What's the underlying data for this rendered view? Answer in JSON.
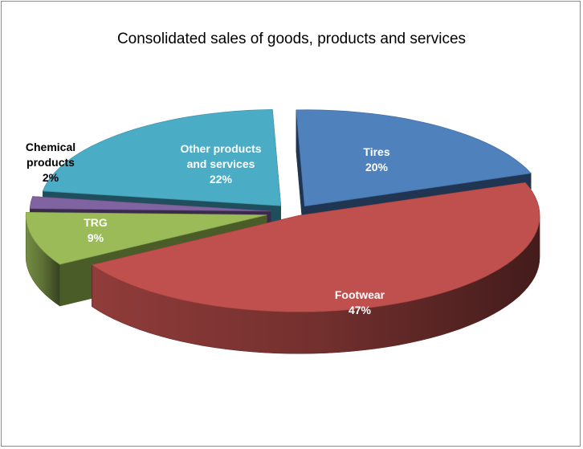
{
  "chart_data": {
    "type": "pie",
    "title": "Consolidated sales of goods, products and services",
    "slices": [
      {
        "label": "Tires",
        "percent_text": "20%",
        "value": 20,
        "color": "#4f81bd",
        "side_color": "#1f3552",
        "label_color": "#ffffff"
      },
      {
        "label": "Footwear",
        "percent_text": "47%",
        "value": 47,
        "color": "#c0504d",
        "side_color": "#5c1f1e",
        "label_color": "#ffffff"
      },
      {
        "label": "TRG",
        "percent_text": "9%",
        "value": 9,
        "color": "#9bbb59",
        "side_color": "#4a5d28",
        "label_color": "#ffffff"
      },
      {
        "label": "Chemical products",
        "percent_text": "2%",
        "value": 2,
        "color": "#8064a2",
        "side_color": "#3a2b4d",
        "label_color": "#000000"
      },
      {
        "label": "Other products and services",
        "percent_text": "22%",
        "value": 22,
        "color": "#4bacc6",
        "side_color": "#1f4f5c",
        "label_color": "#ffffff"
      }
    ],
    "legend": "none",
    "style": "3d-exploded"
  }
}
